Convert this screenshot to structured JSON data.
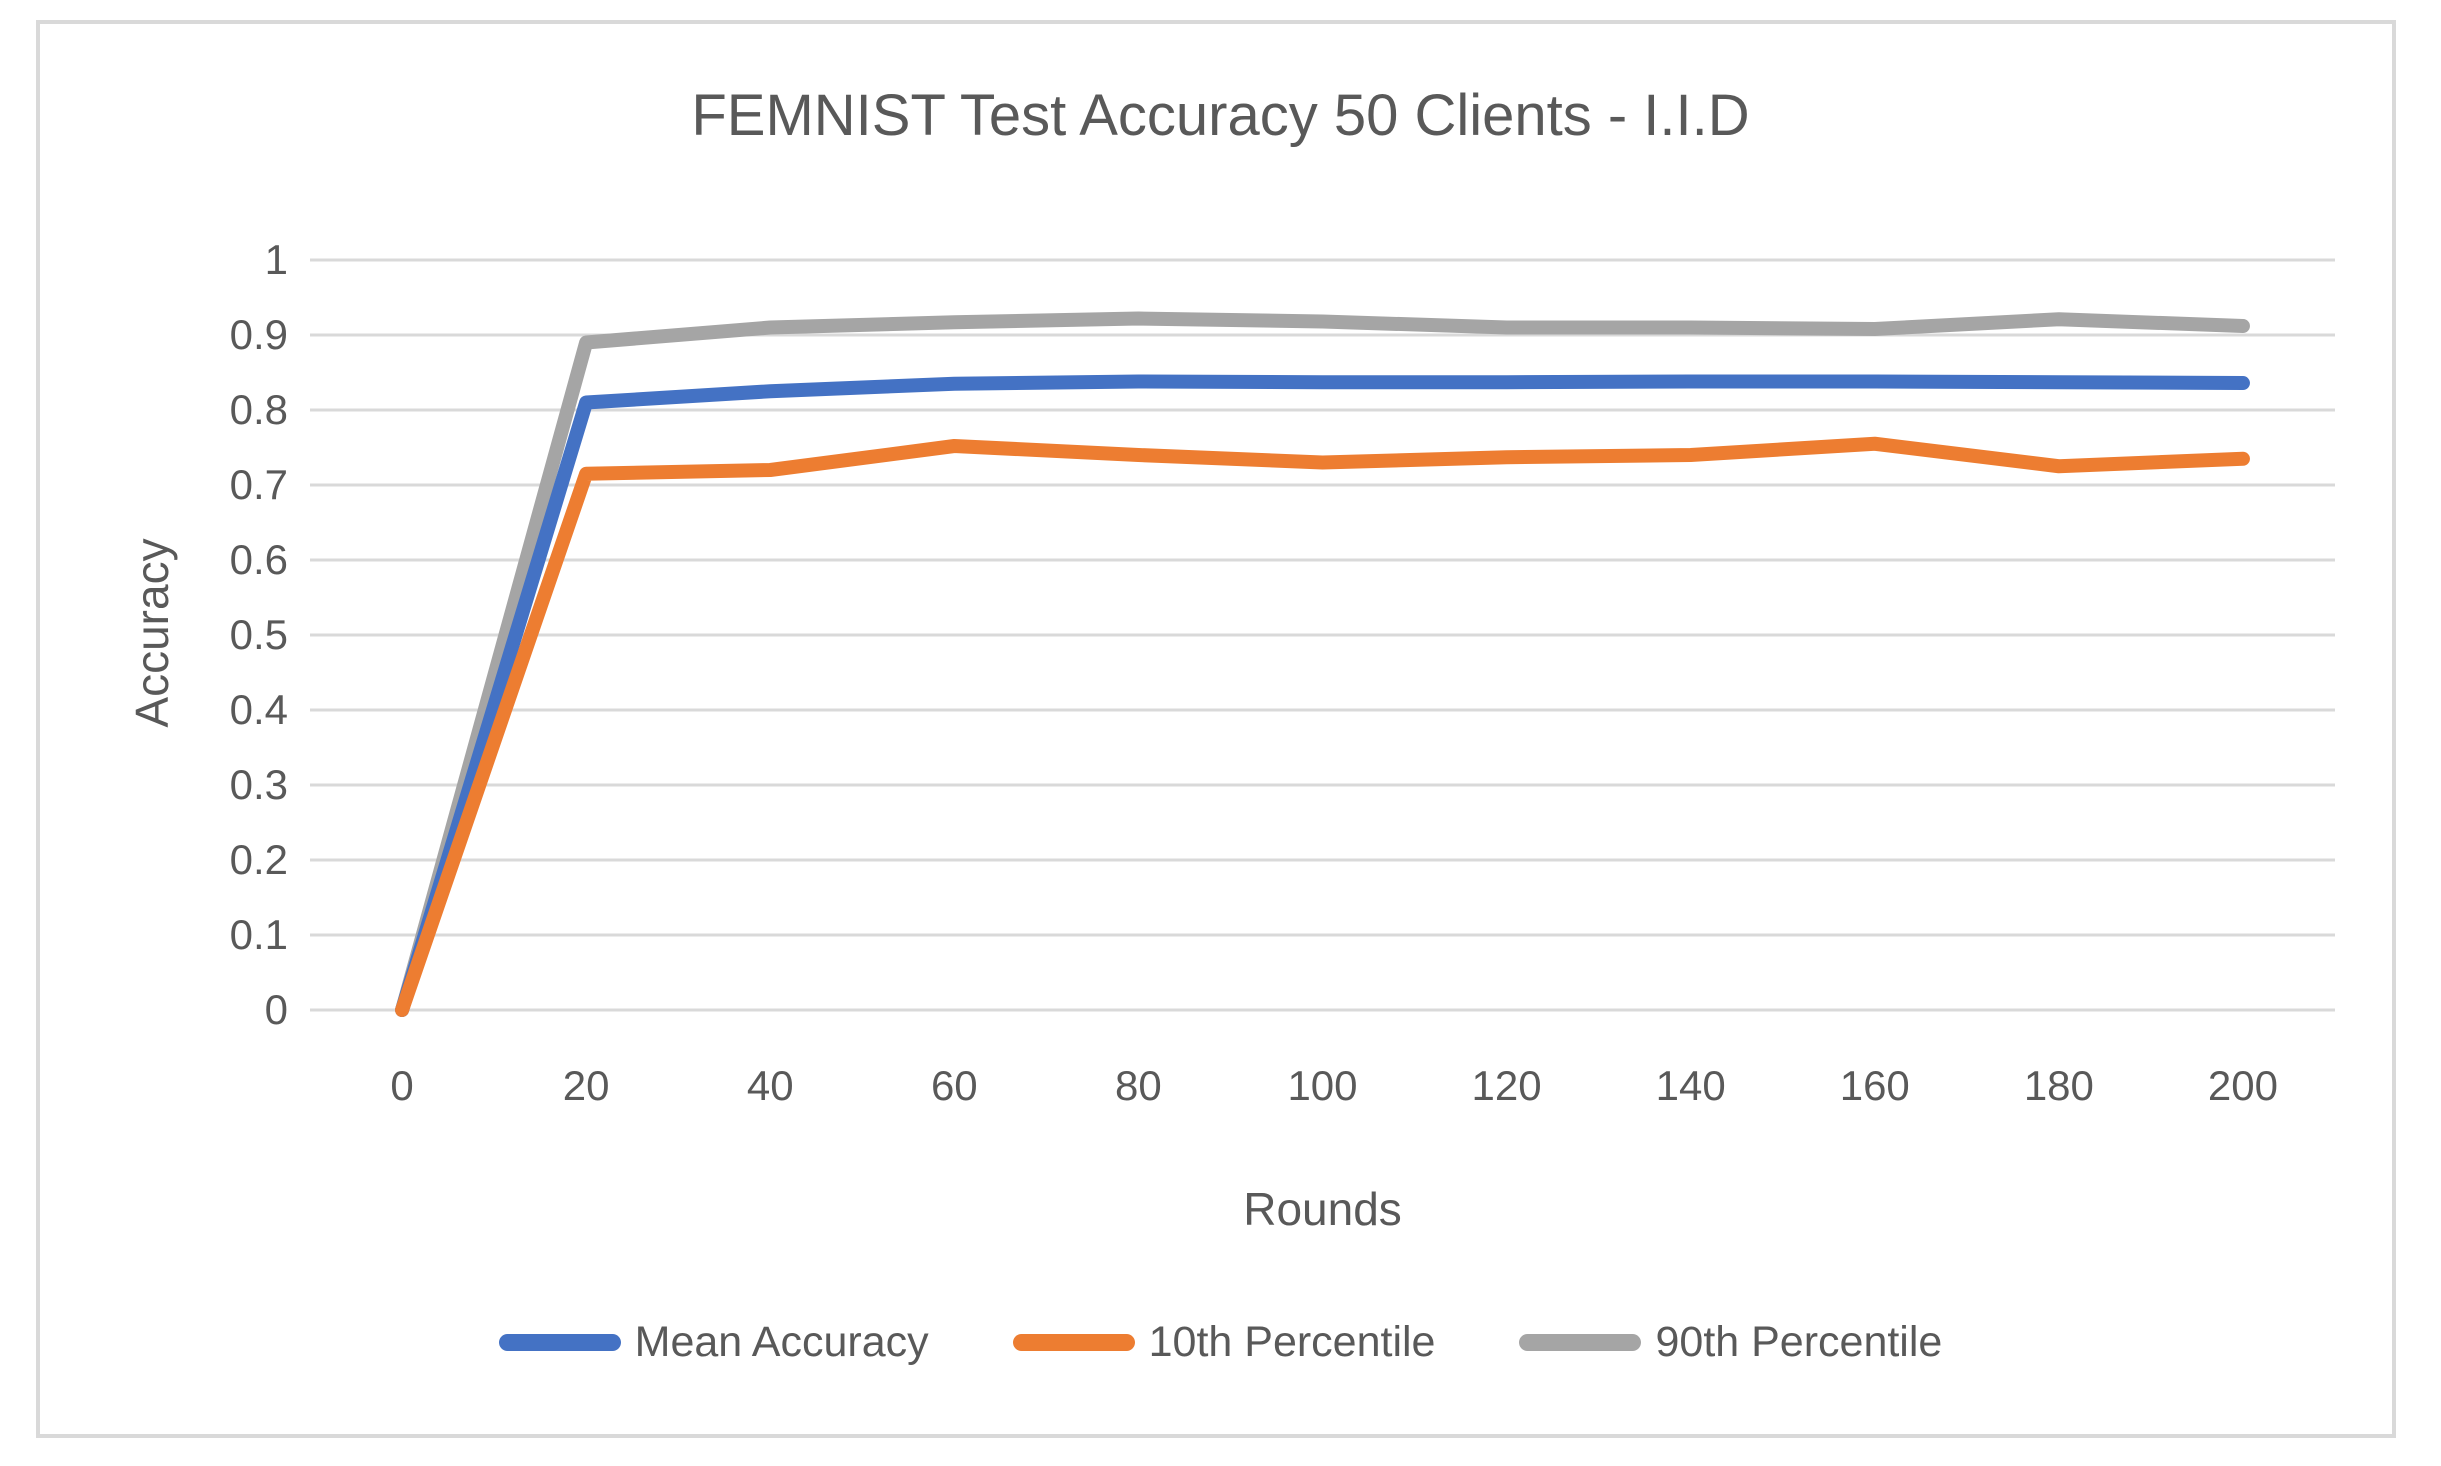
{
  "chart_data": {
    "type": "line",
    "title": "FEMNIST Test Accuracy 50 Clients - I.I.D",
    "xlabel": "Rounds",
    "ylabel": "Accuracy",
    "categories": [
      0,
      20,
      40,
      60,
      80,
      100,
      120,
      140,
      160,
      180,
      200
    ],
    "xtick_labels": [
      "0",
      "20",
      "40",
      "60",
      "80",
      "100",
      "120",
      "140",
      "160",
      "180",
      "200"
    ],
    "ylim": [
      0,
      1
    ],
    "ytick_labels": [
      "0",
      "0.1",
      "0.2",
      "0.3",
      "0.4",
      "0.5",
      "0.6",
      "0.7",
      "0.8",
      "0.9",
      "1"
    ],
    "grid": true,
    "legend_position": "bottom",
    "series": [
      {
        "name": "Mean Accuracy",
        "color": "#4472C4",
        "values": [
          0,
          0.81,
          0.825,
          0.835,
          0.838,
          0.837,
          0.837,
          0.838,
          0.838,
          0.837,
          0.836
        ]
      },
      {
        "name": "10th Percentile",
        "color": "#ED7D31",
        "values": [
          0,
          0.715,
          0.72,
          0.752,
          0.74,
          0.73,
          0.737,
          0.74,
          0.755,
          0.725,
          0.735
        ]
      },
      {
        "name": "90th Percentile",
        "color": "#A5A5A5",
        "values": [
          0,
          0.89,
          0.91,
          0.917,
          0.922,
          0.918,
          0.91,
          0.91,
          0.908,
          0.921,
          0.912
        ]
      }
    ]
  },
  "colors": {
    "text": "#595959",
    "gridline": "#D9D9D9",
    "frame_border": "#D9D9D9",
    "background": "#FFFFFF"
  }
}
